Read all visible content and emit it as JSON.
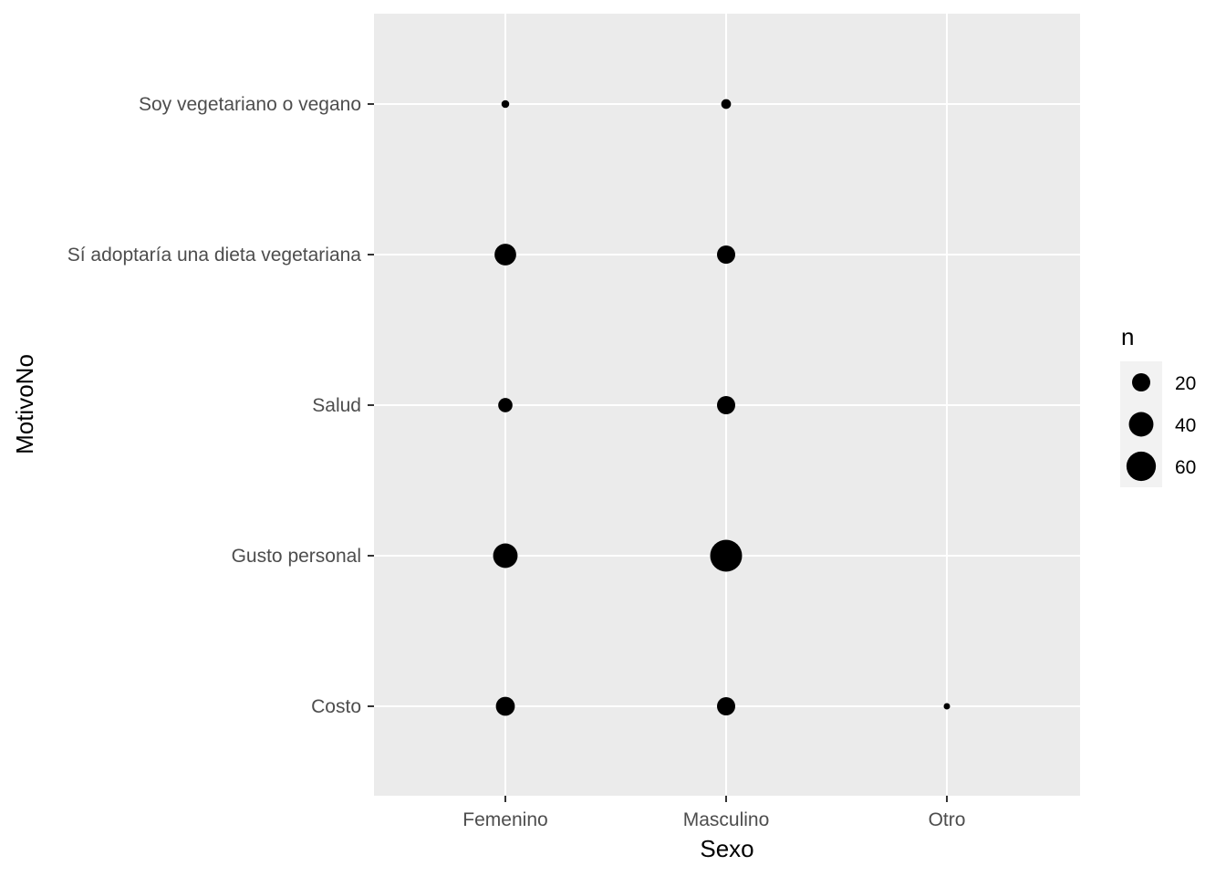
{
  "chart_data": {
    "type": "scatter",
    "xlabel": "Sexo",
    "ylabel": "MotivoNo",
    "x_categories": [
      "Femenino",
      "Masculino",
      "Otro"
    ],
    "y_categories": [
      "Costo",
      "Gusto personal",
      "Salud",
      "Sí adoptaría una dieta vegetariana",
      "Soy vegetariano o vegano"
    ],
    "points": [
      {
        "x": "Femenino",
        "y": "Soy vegetariano o vegano",
        "n": 2
      },
      {
        "x": "Masculino",
        "y": "Soy vegetariano o vegano",
        "n": 4
      },
      {
        "x": "Femenino",
        "y": "Sí adoptaría una dieta vegetariana",
        "n": 30
      },
      {
        "x": "Masculino",
        "y": "Sí adoptaría una dieta vegetariana",
        "n": 20
      },
      {
        "x": "Femenino",
        "y": "Salud",
        "n": 11
      },
      {
        "x": "Masculino",
        "y": "Salud",
        "n": 20
      },
      {
        "x": "Femenino",
        "y": "Gusto personal",
        "n": 40
      },
      {
        "x": "Masculino",
        "y": "Gusto personal",
        "n": 72
      },
      {
        "x": "Femenino",
        "y": "Costo",
        "n": 22
      },
      {
        "x": "Masculino",
        "y": "Costo",
        "n": 20
      },
      {
        "x": "Otro",
        "y": "Costo",
        "n": 1
      }
    ],
    "legend": {
      "title": "n",
      "position": "right",
      "entries": [
        {
          "label": "20",
          "value": 20
        },
        {
          "label": "40",
          "value": 40
        },
        {
          "label": "60",
          "value": 60
        }
      ]
    },
    "size_range": {
      "min": 1,
      "max": 72
    },
    "panel_background": "#EBEBEB",
    "grid_color": "#FFFFFF",
    "point_color": "#000000",
    "grid": true
  }
}
